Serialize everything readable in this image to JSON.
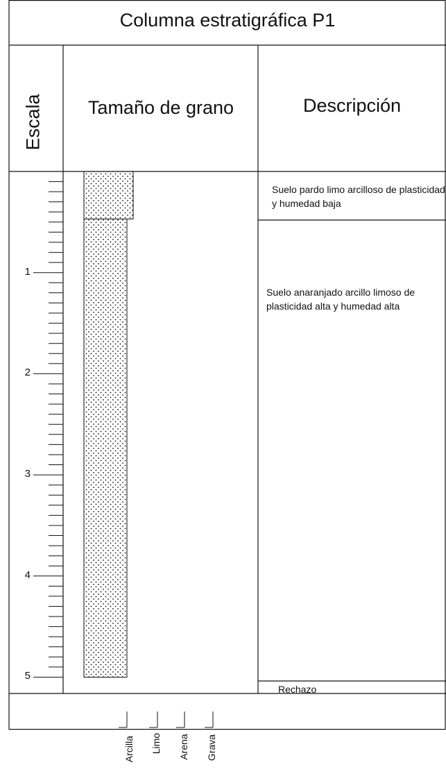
{
  "title": "Columna estratigráfica P1",
  "headers": {
    "scale": "Escala",
    "grain_size": "Tamaño de grano",
    "description": "Descripción"
  },
  "scale_labels": [
    "1",
    "2",
    "3",
    "4",
    "5"
  ],
  "layers": [
    {
      "from_m": 0.0,
      "to_m": 0.47,
      "grain_class": "Limo",
      "pattern": "dotted",
      "description": "Suelo pardo limo arcilloso de plasticidad y humedad baja"
    },
    {
      "from_m": 0.47,
      "to_m": 5.0,
      "grain_class": "Arcilla",
      "pattern": "dotted",
      "description": "Suelo anaranjado arcillo limoso de plasticidad alta y humedad alta"
    }
  ],
  "bottom_note": "Rechazo",
  "grain_classes": [
    "Arcilla",
    "Limo",
    "Arena",
    "Grava"
  ],
  "colors": {
    "line": "#111111",
    "background": "#ffffff"
  }
}
